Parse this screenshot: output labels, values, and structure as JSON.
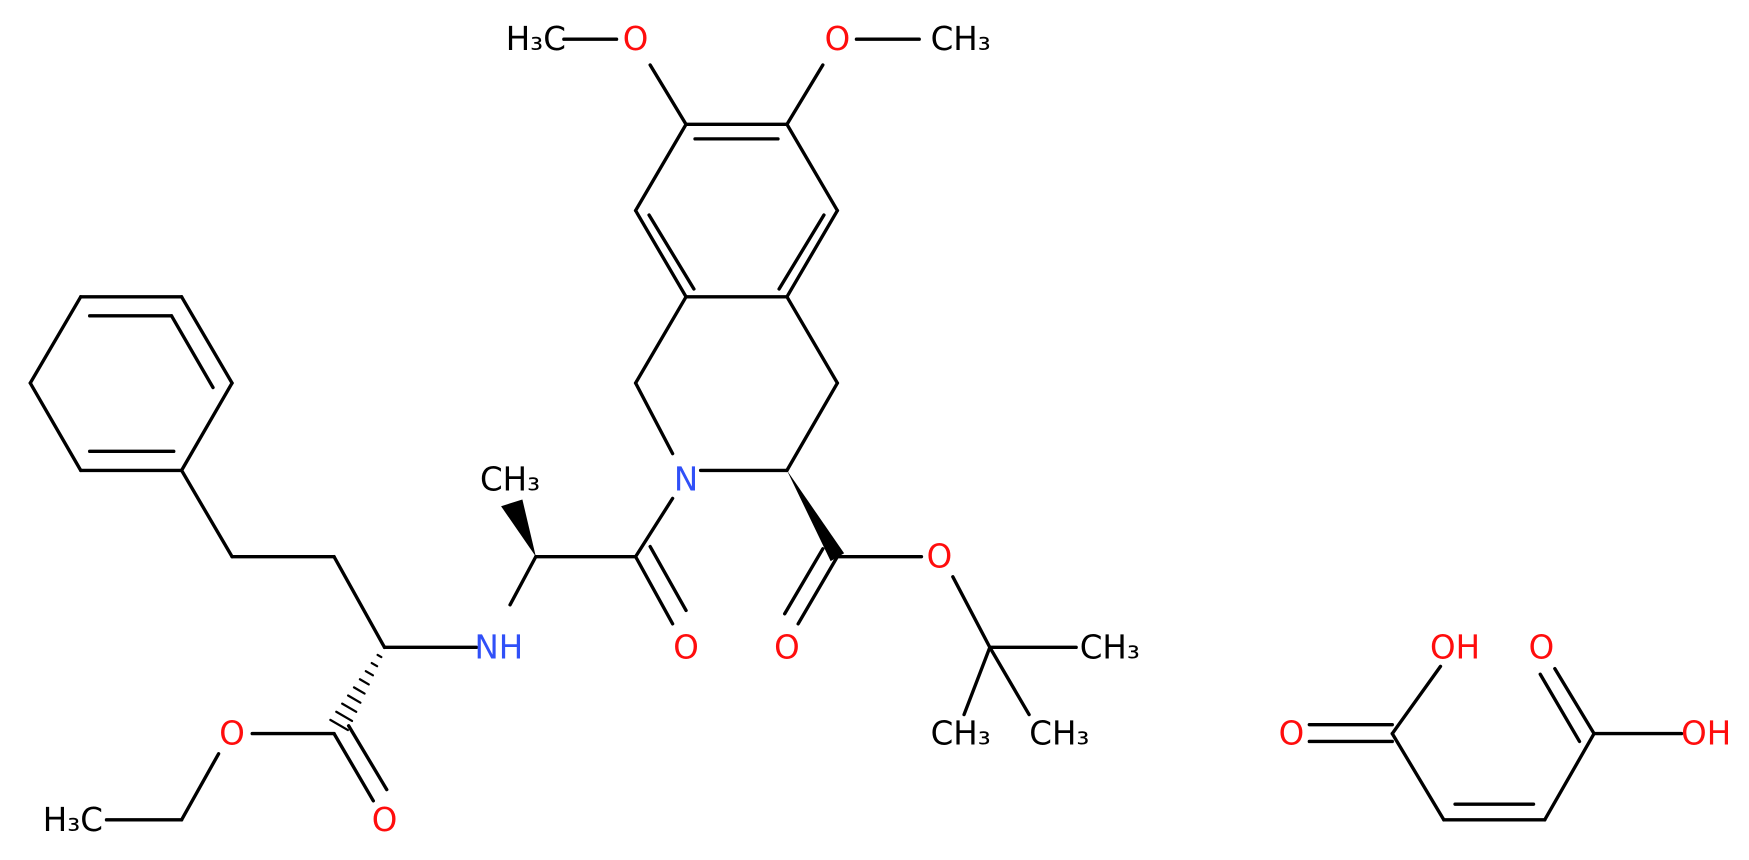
{
  "atoms": [
    {
      "label": "H₃C"
    },
    {
      "label": "O"
    },
    {
      "label": "O"
    },
    {
      "label": "CH₃"
    },
    {
      "label": "N"
    },
    {
      "label": "CH₃"
    },
    {
      "label": "NH"
    },
    {
      "label": "O"
    },
    {
      "label": "O"
    },
    {
      "label": "O"
    },
    {
      "label": "CH₃"
    },
    {
      "label": "CH₃"
    },
    {
      "label": "CH₃"
    },
    {
      "label": "O"
    },
    {
      "label": "O"
    },
    {
      "label": "H₃C"
    },
    {
      "label": "OH"
    },
    {
      "label": "O"
    },
    {
      "label": "O"
    },
    {
      "label": "OH"
    }
  ]
}
